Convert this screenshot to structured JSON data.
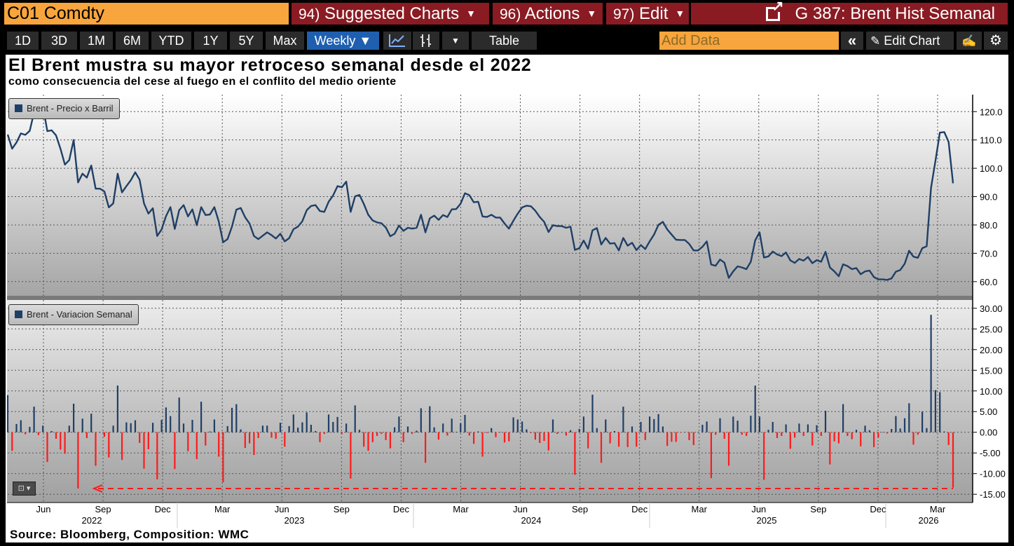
{
  "header": {
    "ticker": "C01 Comdty",
    "menus": [
      {
        "num": "94)",
        "label": "Suggested Charts"
      },
      {
        "num": "96)",
        "label": "Actions"
      },
      {
        "num": "97)",
        "label": "Edit"
      }
    ],
    "chart_title": "G 387: Brent Hist Semanal"
  },
  "toolbar": {
    "ranges": [
      "1D",
      "3D",
      "1M",
      "6M",
      "YTD",
      "1Y",
      "5Y",
      "Max"
    ],
    "frequency": "Weekly ▼",
    "table_label": "Table",
    "add_data_placeholder": "Add Data",
    "edit_chart_label": "Edit Chart",
    "icons": [
      "line-chart-icon",
      "candlestick-icon",
      "dropdown-icon",
      "collapse-icon",
      "pencil-icon",
      "annotate-icon",
      "gear-icon"
    ]
  },
  "source": "Source: Bloomberg, Composition: WMC",
  "chart_data": [
    {
      "type": "line",
      "title": "El Brent mustra su mayor retroceso semanal desde el 2022",
      "subtitle": "como consecuencia del cese al fuego en el conflito del medio oriente",
      "legend": "Brent - Precio x Barril",
      "color": "#1f3f66",
      "ylim": [
        55,
        126
      ],
      "yticks": [
        "120.0",
        "110.0",
        "100.0",
        "90.0",
        "80.0",
        "70.0",
        "60.0"
      ],
      "y": [
        111.9,
        106.9,
        109.1,
        112.3,
        111.8,
        113.2,
        119.7,
        118.9,
        122.1,
        113.1,
        113.4,
        111.6,
        106.9,
        101.3,
        102.9,
        110.0,
        95.0,
        98.1,
        96.7,
        101.0,
        92.8,
        92.8,
        91.8,
        86.2,
        87.6,
        98.1,
        91.5,
        93.7,
        95.8,
        98.6,
        96.0,
        87.6,
        84.0,
        85.9,
        76.1,
        78.4,
        83.1,
        86.3,
        78.6,
        85.2,
        87.0,
        83.0,
        85.5,
        79.9,
        86.3,
        83.5,
        83.7,
        86.3,
        81.2,
        73.9,
        75.0,
        79.4,
        85.4,
        86.0,
        82.7,
        80.5,
        76.1,
        75.0,
        76.2,
        77.4,
        76.4,
        75.2,
        76.9,
        74.2,
        75.3,
        78.5,
        79.4,
        81.3,
        85.2,
        86.7,
        87.0,
        84.9,
        84.6,
        88.2,
        90.4,
        93.7,
        93.3,
        95.3,
        84.6,
        90.1,
        90.6,
        87.4,
        83.6,
        81.6,
        80.9,
        80.6,
        79.1,
        76.0,
        76.9,
        79.8,
        77.9,
        79.0,
        78.7,
        79.0,
        83.6,
        77.4,
        82.3,
        83.3,
        81.8,
        83.5,
        82.8,
        85.5,
        85.6,
        87.5,
        91.2,
        90.5,
        88.0,
        88.2,
        83.0,
        82.8,
        83.6,
        82.6,
        82.6,
        80.5,
        78.7,
        81.5,
        84.0,
        86.2,
        86.8,
        86.6,
        85.0,
        82.8,
        81.1,
        77.5,
        79.9,
        79.6,
        79.6,
        79.0,
        79.4,
        71.2,
        71.8,
        74.5,
        71.6,
        78.1,
        78.9,
        73.1,
        75.4,
        73.4,
        73.6,
        71.0,
        75.4,
        72.7,
        73.7,
        71.1,
        72.9,
        71.5,
        74.2,
        76.6,
        80.0,
        81.1,
        78.4,
        76.6,
        74.8,
        74.7,
        74.7,
        73.3,
        71.0,
        71.0,
        72.3,
        74.2,
        66.0,
        65.6,
        67.8,
        66.7,
        61.3,
        63.6,
        65.4,
        65.0,
        64.4,
        67.0,
        74.6,
        77.4,
        68.5,
        68.9,
        70.6,
        69.6,
        69.0,
        70.3,
        67.5,
        66.6,
        68.0,
        67.4,
        68.7,
        66.5,
        67.6,
        67.0,
        70.5,
        65.0,
        63.6,
        61.9,
        66.1,
        65.5,
        64.4,
        64.8,
        62.6,
        63.6,
        63.9,
        61.6,
        60.8,
        60.8,
        60.6,
        61.1,
        63.5,
        64.1,
        66.3,
        70.9,
        68.8,
        68.4,
        71.8,
        72.5,
        93.1,
        102.6,
        112.6,
        112.8,
        109.3,
        94.7
      ]
    },
    {
      "type": "bar",
      "legend": "Brent - Variacion Semanal",
      "positive_color": "#1f3f66",
      "negative_color": "#ff1a1a",
      "ylim": [
        -17,
        32
      ],
      "yticks": [
        "30.00",
        "25.00",
        "20.00",
        "15.00",
        "10.00",
        "5.00",
        "0.00",
        "-5.00",
        "-10.00",
        "-15.00"
      ],
      "reference_line": -13.6,
      "y": [
        9.0,
        -4.5,
        2.0,
        2.9,
        -0.5,
        1.3,
        6.2,
        -0.7,
        1.6,
        -7.2,
        0.3,
        -1.6,
        -4.2,
        -5.2,
        1.6,
        6.9,
        -13.6,
        3.3,
        -1.4,
        4.5,
        -8.1,
        0.0,
        -1.1,
        -6.1,
        1.6,
        11.3,
        -6.7,
        2.4,
        2.2,
        2.9,
        -2.6,
        -8.8,
        -4.1,
        2.3,
        -11.4,
        3.0,
        6.0,
        3.9,
        -8.9,
        8.4,
        2.1,
        -4.6,
        3.0,
        -6.5,
        7.4,
        -3.2,
        0.2,
        3.1,
        -5.9,
        -12.1,
        1.5,
        5.9,
        6.8,
        0.7,
        -3.8,
        -2.7,
        -5.5,
        -1.4,
        1.6,
        1.6,
        -1.3,
        -1.6,
        2.3,
        -3.5,
        1.5,
        4.3,
        1.1,
        2.4,
        4.8,
        1.8,
        0.3,
        -2.4,
        -0.4,
        4.3,
        2.5,
        3.7,
        -0.4,
        2.1,
        -11.2,
        6.5,
        0.6,
        -3.5,
        -4.5,
        -2.4,
        -0.9,
        -0.4,
        -1.9,
        -3.9,
        1.2,
        3.8,
        -2.4,
        1.4,
        -0.4,
        0.4,
        5.8,
        -7.4,
        6.3,
        1.2,
        -1.8,
        2.1,
        -0.8,
        3.3,
        0.1,
        2.2,
        4.2,
        -0.8,
        -2.8,
        0.2,
        -5.9,
        -0.2,
        1.0,
        -1.2,
        0.0,
        -2.5,
        -2.2,
        3.6,
        3.1,
        2.6,
        0.7,
        -0.2,
        -1.8,
        -2.6,
        -2.1,
        -4.4,
        3.1,
        -0.4,
        0.0,
        -0.8,
        0.5,
        -10.3,
        0.8,
        3.8,
        -3.9,
        9.1,
        1.0,
        -7.4,
        3.1,
        -2.7,
        0.3,
        -3.5,
        6.2,
        -3.6,
        1.4,
        -3.5,
        2.5,
        -1.9,
        3.8,
        3.2,
        4.4,
        1.4,
        -3.3,
        -2.3,
        -2.3,
        -0.1,
        0.0,
        -1.9,
        -3.1,
        0.0,
        1.8,
        2.6,
        -11.1,
        -0.6,
        3.4,
        -1.6,
        -8.1,
        3.8,
        2.8,
        -0.6,
        -0.9,
        4.0,
        11.3,
        3.8,
        -11.5,
        0.6,
        2.5,
        -1.4,
        -0.9,
        1.9,
        -4.0,
        -1.3,
        2.1,
        -0.9,
        1.9,
        -3.2,
        1.7,
        -0.9,
        5.2,
        -7.8,
        -2.2,
        -2.7,
        6.8,
        -0.9,
        -1.7,
        0.6,
        -3.4,
        1.6,
        0.5,
        -3.6,
        -1.3,
        0.0,
        -0.3,
        0.8,
        3.9,
        0.9,
        3.4,
        7.0,
        -3.0,
        -0.6,
        5.0,
        1.0,
        28.4,
        10.2,
        9.7,
        0.2,
        -3.1,
        -13.4
      ]
    }
  ],
  "x_axis": {
    "months": [
      "Jun",
      "Sep",
      "Dec",
      "Mar",
      "Jun",
      "Sep",
      "Dec",
      "Mar",
      "Jun",
      "Sep",
      "Dec",
      "Mar",
      "Jun",
      "Sep",
      "Dec",
      "Mar"
    ],
    "years": [
      "2022",
      "2023",
      "2024",
      "2025",
      "2026"
    ]
  }
}
